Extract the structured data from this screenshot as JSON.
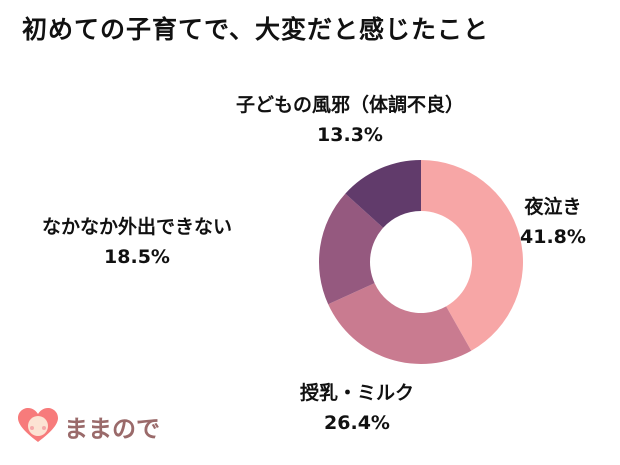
{
  "chart_data": {
    "type": "pie",
    "title": "初めての子育てで、大変だと感じたこと",
    "slices": [
      {
        "label": "夜泣き",
        "value": 41.8,
        "display": "41.8%",
        "color": "#F7A6A6"
      },
      {
        "label": "授乳・ミルク",
        "value": 26.4,
        "display": "26.4%",
        "color": "#C97B90"
      },
      {
        "label": "なかなか外出できない",
        "value": 18.5,
        "display": "18.5%",
        "color": "#95597F"
      },
      {
        "label": "子どもの風邪（体調不良）",
        "value": 13.3,
        "display": "13.3%",
        "color": "#613B6B"
      }
    ],
    "donut": true
  },
  "brand": {
    "name": "ままので"
  }
}
